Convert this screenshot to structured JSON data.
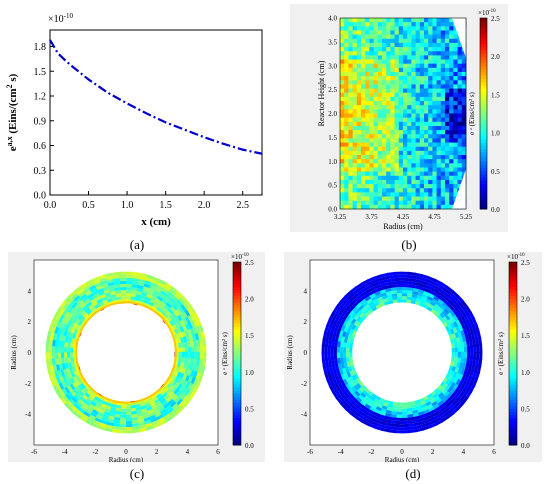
{
  "chart_data": [
    {
      "panel": "(a)",
      "type": "line",
      "xlabel": "x (cm)",
      "ylabel": "e^{a,x} (Eins/(cm² s)",
      "ylabel_main": "e",
      "ylabel_sup": "a,x",
      "ylabel_units_before": " (Eins/(cm",
      "ylabel_units_sup": "2",
      "ylabel_units_after": " s)",
      "multiplier": "×10",
      "multiplier_exp": "-10",
      "xlim": [
        0.0,
        2.75
      ],
      "ylim": [
        0.0,
        2.0
      ],
      "xticks": [
        "0.0",
        "0.5",
        "1.0",
        "1.5",
        "2.0",
        "2.5"
      ],
      "yticks": [
        "0.0",
        "0.3",
        "0.6",
        "0.9",
        "1.2",
        "1.5",
        "1.8"
      ],
      "series": [
        {
          "color": "#0000cc",
          "x": [
            0.0,
            0.05,
            0.1,
            0.2,
            0.3,
            0.5,
            0.75,
            1.0,
            1.25,
            1.5,
            1.75,
            2.0,
            2.25,
            2.5,
            2.75
          ],
          "y": [
            1.88,
            1.8,
            1.72,
            1.63,
            1.55,
            1.4,
            1.24,
            1.11,
            0.99,
            0.88,
            0.79,
            0.7,
            0.62,
            0.55,
            0.5
          ]
        }
      ]
    },
    {
      "panel": "(b)",
      "type": "heatmap",
      "xlabel": "Radius (cm)",
      "ylabel": "Reactor Height (cm)",
      "colorbar_label": "e ^{a} (Eins/cm² s)",
      "colorbar_text": "e ᵃ (Eins/cm² s)",
      "multiplier": "×10",
      "multiplier_exp": "-10",
      "xlim": [
        3.25,
        5.25
      ],
      "ylim": [
        0.0,
        4.0
      ],
      "xticks": [
        "3.25",
        "3.75",
        "4.25",
        "4.75",
        "5.25"
      ],
      "yticks": [
        "0.0",
        "0.5",
        "1.0",
        "1.5",
        "2.0",
        "2.5",
        "3.0",
        "3.5",
        "4.0"
      ],
      "colorbar_ticks": [
        "0.0",
        "0.5",
        "1.0",
        "1.5",
        "2.0",
        "2.5"
      ],
      "colorbar_range": [
        0.0,
        2.5
      ]
    },
    {
      "panel": "(c)",
      "type": "heatmap",
      "xlabel": "Radius (cm)",
      "ylabel": "Radius (cm)",
      "colorbar_text": "e ᵃ (Eins/cm² s)",
      "multiplier": "×10",
      "multiplier_exp": "-10",
      "xlim": [
        -6,
        6
      ],
      "ylim": [
        -6,
        6
      ],
      "xticks": [
        "-6",
        "-4",
        "-2",
        "0",
        "2",
        "4",
        "6"
      ],
      "yticks": [
        "-4",
        "-2",
        "0",
        "2",
        "4"
      ],
      "colorbar_ticks": [
        "0.0",
        "0.5",
        "1.0",
        "1.5",
        "2.0",
        "2.5"
      ],
      "colorbar_range": [
        0.0,
        2.5
      ],
      "ring_inner_radius": 3.25,
      "ring_outer_radius": 5.25
    },
    {
      "panel": "(d)",
      "type": "heatmap",
      "xlabel": "Radius (cm)",
      "ylabel": "Radius (cm)",
      "colorbar_text": "e ᵃ (Eins/cm² s)",
      "multiplier": "×10",
      "multiplier_exp": "-10",
      "xlim": [
        -6,
        6
      ],
      "ylim": [
        -6,
        6
      ],
      "xticks": [
        "-6",
        "-4",
        "-2",
        "0",
        "2",
        "4",
        "6"
      ],
      "yticks": [
        "-4",
        "-2",
        "0",
        "2",
        "4"
      ],
      "colorbar_ticks": [
        "0.0",
        "0.5",
        "1.0",
        "1.5",
        "2.0",
        "2.5"
      ],
      "colorbar_range": [
        0.0,
        2.5
      ],
      "ring_inner_radius": 3.25,
      "ring_outer_radius": 5.25
    }
  ],
  "captions": {
    "a": "(a)",
    "b": "(b)",
    "c": "(c)",
    "d": "(d)"
  },
  "colors": {
    "line": "#0000cc",
    "colormap": [
      "#00007f",
      "#0000ff",
      "#007fff",
      "#00ffff",
      "#7fff7f",
      "#ffff00",
      "#ff7f00",
      "#ff0000",
      "#7f0000"
    ]
  }
}
